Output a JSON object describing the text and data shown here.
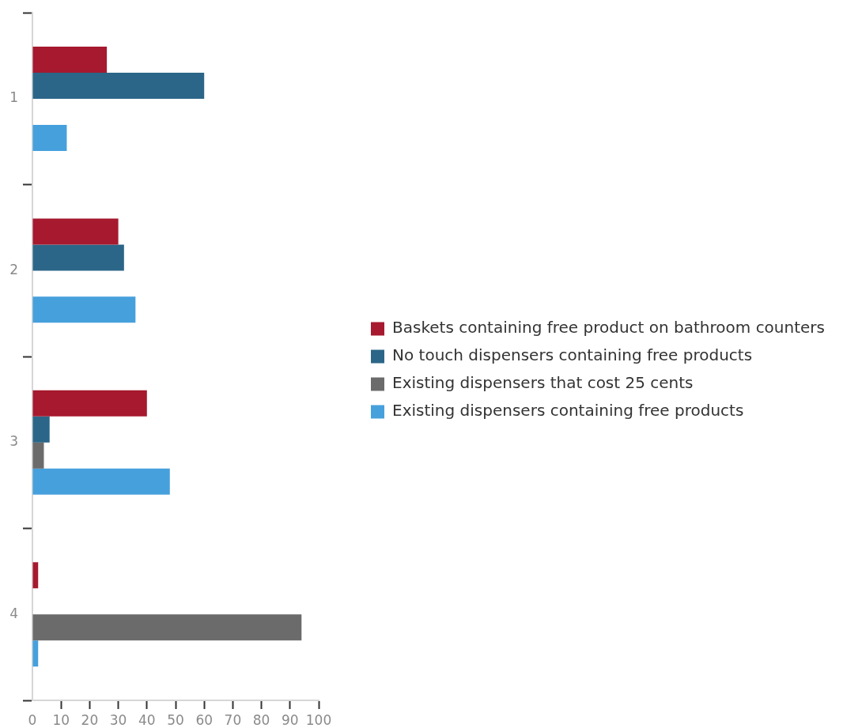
{
  "chart_data": {
    "type": "bar",
    "orientation": "horizontal",
    "categories": [
      "1",
      "2",
      "3",
      "4"
    ],
    "series": [
      {
        "name": "Baskets containing free product on bathroom counters",
        "color": "#a6192e",
        "values": [
          26,
          30,
          40,
          2
        ]
      },
      {
        "name": "No touch dispensers containing free products",
        "color": "#2b6688",
        "values": [
          60,
          32,
          6,
          0
        ]
      },
      {
        "name": "Existing dispensers that cost 25 cents",
        "color": "#6b6b6b",
        "values": [
          0,
          0,
          4,
          94
        ]
      },
      {
        "name": "Existing dispensers containing free products",
        "color": "#46a0dc",
        "values": [
          12,
          36,
          48,
          2
        ]
      }
    ],
    "xlim": [
      0,
      100
    ],
    "xticks": [
      0,
      10,
      20,
      30,
      40,
      50,
      60,
      70,
      80,
      90,
      100
    ],
    "legend": "right"
  }
}
